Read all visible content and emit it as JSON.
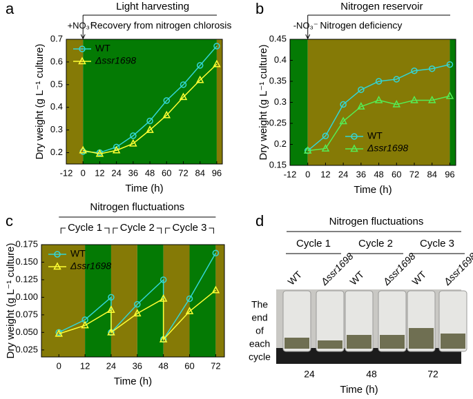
{
  "chart_data": [
    {
      "type": "line",
      "panel": "a",
      "title": "Light harvesting",
      "title_color": "#ff2020",
      "annotations": [
        "+NO₃⁻",
        "Recovery from nitrogen chlorosis"
      ],
      "x": [
        0,
        12,
        24,
        36,
        48,
        60,
        72,
        84,
        96
      ],
      "xlim": [
        -12,
        100
      ],
      "xticks": [
        -12,
        0,
        12,
        24,
        36,
        48,
        60,
        72,
        84,
        96
      ],
      "ylim": [
        0.15,
        0.7
      ],
      "yticks": [
        0.2,
        0.3,
        0.4,
        0.5,
        0.6,
        0.7
      ],
      "xlabel": "Time (h)",
      "ylabel": "Dry weight (g L⁻¹ culture)",
      "legend": "upper left",
      "bands": [
        {
          "from": -12,
          "to": 0,
          "color": "#857a06"
        },
        {
          "from": 0,
          "to": 96,
          "color": "#047a04"
        },
        {
          "from": 96,
          "to": 100,
          "color": "#857a06"
        }
      ],
      "series": [
        {
          "name": "WT",
          "color": "#33d6d6",
          "marker": "circle",
          "values": [
            0.205,
            0.2,
            0.225,
            0.275,
            0.34,
            0.43,
            0.5,
            0.585,
            0.67
          ]
        },
        {
          "name": "Δssr1698",
          "color": "#ffff33",
          "marker": "triangle",
          "values": [
            0.21,
            0.195,
            0.21,
            0.24,
            0.3,
            0.365,
            0.445,
            0.52,
            0.59
          ]
        }
      ]
    },
    {
      "type": "line",
      "panel": "b",
      "title": "Nitrogen reservoir",
      "title_color": "#ff2020",
      "annotations": [
        "-NO₃⁻",
        "Nitrogen deficiency"
      ],
      "x": [
        0,
        12,
        24,
        36,
        48,
        60,
        72,
        84,
        96
      ],
      "xlim": [
        -12,
        100
      ],
      "xticks": [
        -12,
        0,
        12,
        24,
        36,
        48,
        60,
        72,
        84,
        96
      ],
      "ylim": [
        0.15,
        0.45
      ],
      "yticks": [
        0.15,
        0.2,
        0.25,
        0.3,
        0.35,
        0.4,
        0.45
      ],
      "xlabel": "Time (h)",
      "ylabel": "Dry weight (g L⁻¹ culture)",
      "legend": "lower center",
      "bands": [
        {
          "from": -12,
          "to": 0,
          "color": "#047a04"
        },
        {
          "from": 0,
          "to": 96,
          "color": "#857a06"
        },
        {
          "from": 96,
          "to": 100,
          "color": "#047a04"
        }
      ],
      "series": [
        {
          "name": "WT",
          "color": "#33d6d6",
          "marker": "circle",
          "values": [
            0.185,
            0.22,
            0.295,
            0.33,
            0.35,
            0.355,
            0.375,
            0.38,
            0.39
          ]
        },
        {
          "name": "Δssr1698",
          "color": "#55ee55",
          "marker": "triangle",
          "values": [
            0.185,
            0.19,
            0.255,
            0.29,
            0.305,
            0.295,
            0.305,
            0.305,
            0.315
          ]
        }
      ]
    },
    {
      "type": "line",
      "panel": "c",
      "title": "Nitrogen fluctuations",
      "title_color": "#ff2020",
      "cycles": [
        {
          "label": "Cycle 1",
          "from": 0,
          "to": 24
        },
        {
          "label": "Cycle 2",
          "from": 24,
          "to": 48
        },
        {
          "label": "Cycle 3",
          "from": 48,
          "to": 72
        }
      ],
      "cycle_color": "#1a1aff",
      "x": [
        0,
        12,
        24,
        24,
        36,
        48,
        48,
        60,
        72
      ],
      "xlim": [
        -8,
        76
      ],
      "xticks": [
        0,
        12,
        24,
        36,
        48,
        60,
        72
      ],
      "xtick_colors": [
        "#000000",
        "#000000",
        "#dd10dd",
        "#000000",
        "#dd10dd",
        "#000000",
        "#dd10dd"
      ],
      "ylim": [
        0.015,
        0.175
      ],
      "yticks": [
        {
          "value": 0.025,
          "label": "0.025"
        },
        {
          "value": 0.05,
          "label": "0.050"
        },
        {
          "value": 0.075,
          "label": "0.075"
        },
        {
          "value": 0.1,
          "label": "0.100"
        },
        {
          "value": 0.125,
          "label": "0.125"
        },
        {
          "value": 0.15,
          "label": "0.150"
        },
        {
          "value": 0.175,
          "label": "0.175"
        }
      ],
      "xlabel": "Time (h)",
      "ylabel": "Dry weight (g L⁻¹ culture)",
      "legend": "upper left",
      "bands": [
        {
          "from": -8,
          "to": 12,
          "color": "#857a06"
        },
        {
          "from": 12,
          "to": 24,
          "color": "#047a04"
        },
        {
          "from": 24,
          "to": 36,
          "color": "#857a06"
        },
        {
          "from": 36,
          "to": 48,
          "color": "#047a04"
        },
        {
          "from": 48,
          "to": 60,
          "color": "#857a06"
        },
        {
          "from": 60,
          "to": 72,
          "color": "#047a04"
        },
        {
          "from": 72,
          "to": 76,
          "color": "#857a06"
        }
      ],
      "series": [
        {
          "name": "WT",
          "color": "#33d6d6",
          "marker": "circle",
          "values": [
            0.05,
            0.068,
            0.1,
            0.05,
            0.09,
            0.125,
            0.04,
            0.098,
            0.163
          ]
        },
        {
          "name": "Δssr1698",
          "color": "#ffff33",
          "marker": "triangle",
          "values": [
            0.048,
            0.06,
            0.082,
            0.05,
            0.077,
            0.098,
            0.04,
            0.08,
            0.11
          ]
        }
      ]
    }
  ],
  "photo_panel": {
    "panel": "d",
    "title": "Nitrogen fluctuations",
    "cycles": [
      "Cycle 1",
      "Cycle 2",
      "Cycle 3"
    ],
    "columns": [
      "WT",
      "Δssr1698",
      "WT",
      "Δssr1698",
      "WT",
      "Δssr1698"
    ],
    "row_label": [
      "The",
      "end",
      "of",
      "each",
      "cycle"
    ],
    "times": [
      "24",
      "48",
      "72"
    ],
    "xlabel": "Time (h)"
  }
}
